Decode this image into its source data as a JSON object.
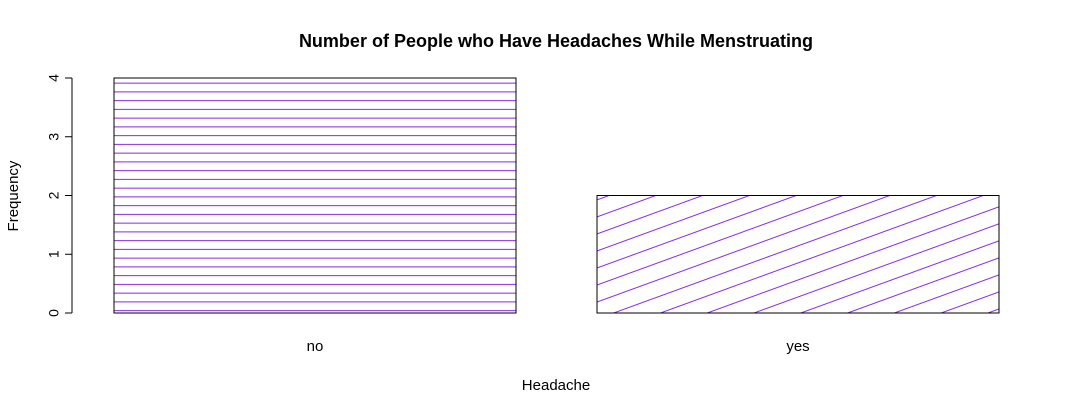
{
  "chart_data": {
    "type": "bar",
    "title": "Number of People who Have Headaches While Menstruating",
    "xlabel": "Headache",
    "ylabel": "Frequency",
    "categories": [
      "no",
      "yes"
    ],
    "values": [
      4,
      2
    ],
    "ylim": [
      0,
      4
    ],
    "yticks": [
      "0",
      "1",
      "2",
      "3",
      "4"
    ],
    "grid": false,
    "legend": "none",
    "bar_fill": "#ffffff",
    "bar_border": "#000000",
    "hatch_color": "#8a2be2",
    "hatch_styles": [
      "horizontal",
      "diagonal"
    ]
  }
}
